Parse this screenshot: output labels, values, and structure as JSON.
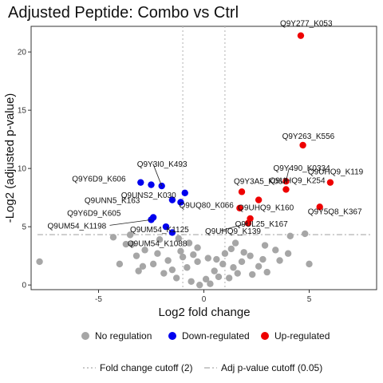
{
  "chart_data": {
    "type": "scatter",
    "title": "Adjusted Peptide: Combo vs Ctrl",
    "xlabel": "Log2 fold change",
    "ylabel": "-Log2 (adjusted p-value)",
    "xlim": [
      -8.2,
      8.2
    ],
    "ylim": [
      -0.4,
      22.2
    ],
    "xticks": [
      -5,
      0,
      5
    ],
    "yticks": [
      0,
      5,
      10,
      15,
      20
    ],
    "grid": false,
    "fold_change_cutoff": 1,
    "pvalue_cutoff_y": 4.32,
    "legend_position": "bottom",
    "legend": {
      "groups": [
        {
          "label": "No regulation",
          "color": "#a6a6a6"
        },
        {
          "label": "Down-regulated",
          "color": "#0000ee"
        },
        {
          "label": "Up-regulated",
          "color": "#ee0000"
        }
      ],
      "lines": [
        {
          "label": "Fold change cutoff (2)",
          "dash": "2,3"
        },
        {
          "label": "Adj p-value cutoff (0.05)",
          "dash": "7,3,2,3"
        }
      ]
    },
    "series": [
      {
        "name": "Up-regulated",
        "color": "#ee0000",
        "points": [
          {
            "x": 4.6,
            "y": 21.4,
            "label": "Q9Y277_K053"
          },
          {
            "x": 4.7,
            "y": 12.0,
            "label": "Q9Y263_K556"
          },
          {
            "x": 3.9,
            "y": 8.9,
            "label": "Q9Y490_K0334"
          },
          {
            "x": 6.0,
            "y": 8.8,
            "label": "Q9UHQ9_K119"
          },
          {
            "x": 1.8,
            "y": 8.0,
            "label": "Q9Y3A5_K067"
          },
          {
            "x": 3.9,
            "y": 8.2,
            "label": "Q9UHQ9_K254"
          },
          {
            "x": 2.6,
            "y": 7.3,
            "label": "Q9UHQ9_K160"
          },
          {
            "x": 5.5,
            "y": 6.7,
            "label": "Q9Y5Q8_K367"
          },
          {
            "x": 1.7,
            "y": 6.6,
            "label": ""
          },
          {
            "x": 2.2,
            "y": 5.7,
            "label": "Q9UL25_K167"
          },
          {
            "x": 2.1,
            "y": 5.3,
            "label": "Q9UHQ9_K139"
          }
        ]
      },
      {
        "name": "Down-regulated",
        "color": "#0000ee",
        "points": [
          {
            "x": -3.0,
            "y": 8.8,
            "label": "Q9Y6D9_K606"
          },
          {
            "x": -2.5,
            "y": 8.6,
            "label": ""
          },
          {
            "x": -2.0,
            "y": 8.5,
            "label": "Q9Y3I0_K493"
          },
          {
            "x": -0.9,
            "y": 7.9,
            "label": "Q9UNS2_K030"
          },
          {
            "x": -1.5,
            "y": 7.3,
            "label": "Q9UNN5_K163"
          },
          {
            "x": -1.1,
            "y": 7.1,
            "label": "Q9UQ80_K066"
          },
          {
            "x": -2.4,
            "y": 5.8,
            "label": "Q9Y6D9_K605"
          },
          {
            "x": -2.5,
            "y": 5.6,
            "label": "Q9UM54_K1198"
          },
          {
            "x": -1.8,
            "y": 5.0,
            "label": "Q9UM54_K1125"
          },
          {
            "x": -1.5,
            "y": 4.5,
            "label": "Q9UM54_K1088"
          }
        ]
      },
      {
        "name": "No regulation",
        "color": "#a6a6a6",
        "points": [
          {
            "x": -7.8,
            "y": 2.0
          },
          {
            "x": -4.3,
            "y": 4.1
          },
          {
            "x": -3.5,
            "y": 4.3
          },
          {
            "x": -3.4,
            "y": 3.5
          },
          {
            "x": -2.1,
            "y": 3.9
          },
          {
            "x": -2.8,
            "y": 3.0
          },
          {
            "x": -1.2,
            "y": 4.0
          },
          {
            "x": -0.7,
            "y": 3.6
          },
          {
            "x": -0.3,
            "y": 3.2
          },
          {
            "x": -3.2,
            "y": 2.5
          },
          {
            "x": -2.2,
            "y": 2.7
          },
          {
            "x": -1.7,
            "y": 2.1
          },
          {
            "x": -1.0,
            "y": 2.4
          },
          {
            "x": -0.3,
            "y": 2.0
          },
          {
            "x": 0.2,
            "y": 2.3
          },
          {
            "x": 0.6,
            "y": 2.2
          },
          {
            "x": 0.9,
            "y": 1.8
          },
          {
            "x": 1.4,
            "y": 1.5
          },
          {
            "x": 1.8,
            "y": 2.0
          },
          {
            "x": 2.2,
            "y": 2.5
          },
          {
            "x": 2.8,
            "y": 2.2
          },
          {
            "x": 3.4,
            "y": 3.0
          },
          {
            "x": 4.1,
            "y": 4.2
          },
          {
            "x": 4.8,
            "y": 4.4
          },
          {
            "x": 5.0,
            "y": 1.8
          },
          {
            "x": 4.0,
            "y": 2.7
          },
          {
            "x": 3.0,
            "y": 1.1
          },
          {
            "x": 2.3,
            "y": 0.9
          },
          {
            "x": 1.6,
            "y": 1.0
          },
          {
            "x": 1.2,
            "y": 0.6
          },
          {
            "x": 0.7,
            "y": 0.7
          },
          {
            "x": 0.3,
            "y": 0.1
          },
          {
            "x": -0.2,
            "y": 0.0
          },
          {
            "x": -0.6,
            "y": 0.3
          },
          {
            "x": -1.3,
            "y": 0.6
          },
          {
            "x": -1.9,
            "y": 1.0
          },
          {
            "x": -2.4,
            "y": 1.8
          },
          {
            "x": -2.9,
            "y": 1.6
          },
          {
            "x": -4.0,
            "y": 1.8
          },
          {
            "x": -3.7,
            "y": 3.5
          },
          {
            "x": 1.3,
            "y": 3.1
          },
          {
            "x": 1.0,
            "y": 2.7
          },
          {
            "x": 1.9,
            "y": 2.8
          },
          {
            "x": -0.8,
            "y": 1.5
          },
          {
            "x": 0.5,
            "y": 1.2
          },
          {
            "x": -1.5,
            "y": 1.3
          },
          {
            "x": 2.6,
            "y": 1.6
          },
          {
            "x": 0.1,
            "y": 0.5
          },
          {
            "x": -1.1,
            "y": 2.9
          },
          {
            "x": 3.6,
            "y": 2.1
          },
          {
            "x": -3.1,
            "y": 1.2
          },
          {
            "x": 1.5,
            "y": 3.6
          },
          {
            "x": 2.9,
            "y": 3.4
          },
          {
            "x": -0.5,
            "y": 2.6
          }
        ]
      }
    ]
  }
}
